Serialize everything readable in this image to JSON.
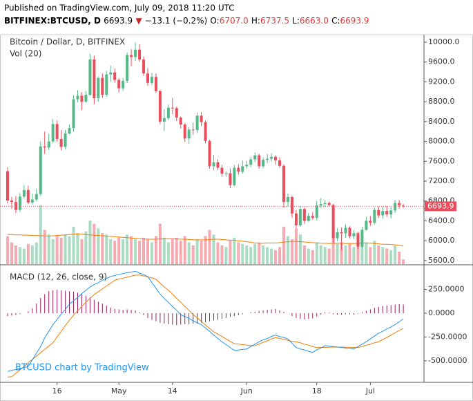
{
  "header": {
    "published": "Published on TradingView.com, July 09, 2018 11:20 UTC",
    "symbol": "BITFINEX:BTCUSD, D",
    "last": "6693.9",
    "arrow": "▼",
    "change": "−13.1 (−0.2%)",
    "o_label": "O:",
    "o": "6707.0",
    "h_label": "H:",
    "h": "6737.5",
    "l_label": "L:",
    "l": "6663.0",
    "c_label": "C:",
    "c": "6693.9"
  },
  "chart_data": {
    "type": "candlestick",
    "title": "Bitcoin / Dollar, D, BITFINEX",
    "watermark": "BTCUSD chart by TradingView",
    "up_color": "#53b987",
    "down_color": "#eb4d5c",
    "vol_up_color": "#a9dcc3",
    "vol_down_color": "#f5a9b0",
    "categories": [
      null,
      null,
      null,
      null,
      null,
      null,
      null,
      null,
      null,
      null,
      null,
      null,
      "16",
      null,
      null,
      null,
      null,
      null,
      null,
      null,
      null,
      null,
      null,
      null,
      null,
      null,
      null,
      "May",
      null,
      null,
      null,
      null,
      null,
      null,
      null,
      null,
      null,
      null,
      null,
      null,
      "14",
      null,
      null,
      null,
      null,
      null,
      null,
      null,
      null,
      null,
      null,
      null,
      null,
      null,
      null,
      null,
      null,
      null,
      "Jun",
      null,
      null,
      null,
      null,
      null,
      null,
      null,
      null,
      null,
      null,
      null,
      null,
      null,
      null,
      null,
      null,
      "18",
      null,
      null,
      null,
      null,
      null,
      null,
      null,
      null,
      null,
      null,
      null,
      null,
      "Jul",
      null,
      null,
      null,
      null,
      null,
      null,
      null,
      null
    ],
    "open": [
      7400,
      6810,
      6780,
      6620,
      6890,
      7020,
      6770,
      6830,
      6940,
      7900,
      7880,
      8000,
      8350,
      8050,
      7890,
      8160,
      8270,
      8850,
      8920,
      8800,
      8940,
      9650,
      8870,
      9280,
      8940,
      9350,
      9390,
      9240,
      9070,
      9220,
      9740,
      9700,
      9850,
      9650,
      9370,
      9180,
      9300,
      9010,
      8400,
      8470,
      8680,
      8670,
      8480,
      8340,
      8060,
      8240,
      8230,
      8520,
      8390,
      8010,
      7500,
      7580,
      7470,
      7350,
      7360,
      7120,
      7470,
      7390,
      7500,
      7530,
      7640,
      7720,
      7500,
      7630,
      7650,
      7690,
      7620,
      7510,
      6780,
      6880,
      6550,
      6310,
      6640,
      6400,
      6500,
      6460,
      6710,
      6740,
      6760,
      6720,
      6050,
      6170,
      6150,
      6260,
      6090,
      6150,
      5880,
      6220,
      6400,
      6360,
      6620,
      6510,
      6600,
      6530,
      6610,
      6760,
      6707
    ],
    "high": [
      7480,
      6880,
      6900,
      6960,
      7120,
      7110,
      6950,
      7050,
      8000,
      8200,
      8150,
      8450,
      8430,
      8230,
      8230,
      8340,
      8930,
      9030,
      8990,
      9020,
      9760,
      9730,
      9310,
      9370,
      9420,
      9530,
      9470,
      9270,
      9280,
      9790,
      9860,
      9990,
      9960,
      9710,
      9480,
      9380,
      9370,
      9040,
      8650,
      8740,
      8880,
      8700,
      8500,
      8370,
      8290,
      8380,
      8580,
      8590,
      8420,
      8030,
      7730,
      7640,
      7530,
      7400,
      7460,
      7530,
      7540,
      7620,
      7610,
      7690,
      7780,
      7750,
      7680,
      7750,
      7760,
      7720,
      7680,
      7540,
      6950,
      6910,
      6620,
      6700,
      6670,
      6560,
      6580,
      6800,
      6860,
      6820,
      6790,
      6740,
      6250,
      6270,
      6330,
      6290,
      6210,
      6180,
      6280,
      6480,
      6500,
      6660,
      6690,
      6680,
      6700,
      6680,
      6820,
      6820,
      6737.5
    ],
    "low": [
      6750,
      6640,
      6560,
      6580,
      6850,
      6740,
      6730,
      6790,
      6900,
      7750,
      7830,
      7970,
      7990,
      7820,
      7840,
      8140,
      8200,
      8790,
      8630,
      8780,
      8920,
      8750,
      8800,
      8880,
      8900,
      9200,
      9180,
      8990,
      9020,
      9180,
      9510,
      9620,
      9600,
      9320,
      9120,
      9130,
      8980,
      8350,
      8210,
      8430,
      8550,
      8410,
      8260,
      7990,
      7950,
      8130,
      8170,
      8310,
      7960,
      7450,
      7420,
      7420,
      7290,
      7290,
      7060,
      7090,
      7330,
      7350,
      7450,
      7480,
      7580,
      7450,
      7460,
      7560,
      7600,
      7530,
      7470,
      6660,
      6690,
      6460,
      6250,
      6280,
      6340,
      6380,
      6420,
      6410,
      6660,
      6680,
      6700,
      5960,
      5990,
      5800,
      6060,
      6050,
      6030,
      5830,
      5850,
      6200,
      6300,
      6330,
      6460,
      6440,
      6480,
      6450,
      6560,
      6650,
      6663
    ],
    "close": [
      6810,
      6780,
      6620,
      6890,
      7020,
      6770,
      6830,
      6940,
      7900,
      7880,
      8000,
      8350,
      8050,
      7890,
      8160,
      8270,
      8850,
      8920,
      8800,
      8940,
      9650,
      8870,
      9280,
      8940,
      9350,
      9390,
      9240,
      9070,
      9220,
      9740,
      9700,
      9850,
      9650,
      9370,
      9180,
      9300,
      9010,
      8400,
      8470,
      8680,
      8670,
      8480,
      8340,
      8060,
      8240,
      8230,
      8520,
      8390,
      8010,
      7500,
      7580,
      7470,
      7350,
      7360,
      7120,
      7470,
      7390,
      7500,
      7530,
      7640,
      7720,
      7500,
      7630,
      7650,
      7690,
      7620,
      7510,
      6780,
      6880,
      6550,
      6310,
      6640,
      6400,
      6500,
      6460,
      6710,
      6740,
      6760,
      6720,
      6050,
      6170,
      6150,
      6260,
      6090,
      6150,
      5880,
      6220,
      6400,
      6360,
      6620,
      6510,
      6600,
      6530,
      6610,
      6760,
      6710,
      6693.9
    ],
    "ylim": [
      5515,
      10153
    ],
    "yticks": [
      {
        "value": 10000,
        "label": "10000.0"
      },
      {
        "value": 9600,
        "label": "9600.0"
      },
      {
        "value": 9200,
        "label": "9200.0"
      },
      {
        "value": 8800,
        "label": "8800.0"
      },
      {
        "value": 8400,
        "label": "8400.0"
      },
      {
        "value": 8000,
        "label": "8000.0"
      },
      {
        "value": 7600,
        "label": "7600.0"
      },
      {
        "value": 7200,
        "label": "7200.0"
      },
      {
        "value": 6800,
        "label": "6800.0"
      },
      {
        "value": 6400,
        "label": "6400.0"
      },
      {
        "value": 6000,
        "label": "6000.0"
      },
      {
        "value": 5600,
        "label": "5600.0"
      }
    ],
    "volume": {
      "label": "Vol (20)",
      "ma_color": "#f57c00",
      "values": [
        90,
        70,
        60,
        55,
        50,
        65,
        60,
        70,
        190,
        110,
        95,
        80,
        90,
        85,
        95,
        90,
        120,
        100,
        80,
        105,
        140,
        130,
        115,
        100,
        95,
        80,
        75,
        85,
        80,
        95,
        90,
        80,
        75,
        85,
        80,
        70,
        90,
        130,
        85,
        70,
        80,
        85,
        75,
        90,
        70,
        60,
        80,
        75,
        90,
        110,
        95,
        70,
        60,
        55,
        75,
        85,
        70,
        65,
        60,
        55,
        65,
        70,
        60,
        55,
        50,
        45,
        55,
        120,
        90,
        80,
        115,
        95,
        60,
        50,
        45,
        70,
        60,
        55,
        50,
        120,
        65,
        70,
        60,
        65,
        55,
        100,
        80,
        70,
        55,
        75,
        60,
        55,
        50,
        45,
        60,
        40,
        15
      ],
      "ma": [
        95,
        95,
        94,
        94,
        93,
        93,
        92,
        92,
        91,
        91,
        90,
        91,
        92,
        93,
        94,
        95,
        96,
        96,
        96,
        95,
        94,
        93,
        92,
        91,
        90,
        89,
        88,
        87,
        86,
        85,
        84,
        83,
        82,
        81,
        80,
        80,
        80,
        81,
        82,
        82,
        82,
        81,
        80,
        80,
        79,
        78,
        78,
        78,
        78,
        79,
        80,
        80,
        79,
        78,
        77,
        76,
        75,
        74,
        72,
        70,
        68,
        67,
        67,
        68,
        68,
        68,
        69,
        71,
        72,
        73,
        73,
        72,
        71,
        70,
        69,
        68,
        67,
        67,
        66,
        67,
        67,
        67,
        66,
        66,
        66,
        67,
        68,
        68,
        67,
        66,
        65,
        64,
        64,
        63,
        62,
        60,
        58
      ]
    },
    "macd": {
      "label": "MACD (12, 26, close, 9)",
      "macd_color": "#2196f3",
      "signal_color": "#f57c00",
      "hist_color": "#9c1a5a",
      "ylim": [
        -725,
        507
      ],
      "yticks": [
        {
          "value": 250,
          "label": "250.0000"
        },
        {
          "value": 0,
          "label": "0.0000"
        },
        {
          "value": -250,
          "label": "-250.0000"
        },
        {
          "value": -500,
          "label": "-500.0000"
        }
      ],
      "macd": [
        -610,
        -600,
        -590,
        -580,
        -570,
        -560,
        -490,
        -420,
        -350,
        -260,
        -190,
        -120,
        -65,
        -10,
        40,
        95,
        130,
        165,
        205,
        240,
        275,
        300,
        320,
        345,
        365,
        385,
        395,
        405,
        415,
        425,
        430,
        440,
        420,
        405,
        385,
        320,
        260,
        200,
        155,
        115,
        70,
        30,
        -15,
        -35,
        -55,
        -80,
        -100,
        -120,
        -155,
        -190,
        -230,
        -265,
        -300,
        -330,
        -360,
        -390,
        -385,
        -380,
        -375,
        -350,
        -325,
        -300,
        -280,
        -265,
        -245,
        -230,
        -245,
        -255,
        -270,
        -315,
        -360,
        -375,
        -385,
        -400,
        -410,
        -385,
        -365,
        -340,
        -345,
        -350,
        -355,
        -360,
        -365,
        -370,
        -375,
        -350,
        -325,
        -300,
        -270,
        -240,
        -210,
        -190,
        -165,
        -145,
        -120,
        -90,
        -60
      ],
      "signal": [
        -670,
        -666,
        -630,
        -595,
        -560,
        -520,
        -485,
        -450,
        -415,
        -380,
        -345,
        -310,
        -250,
        -190,
        -130,
        -75,
        -20,
        25,
        70,
        115,
        155,
        195,
        225,
        255,
        285,
        315,
        345,
        357,
        368,
        378,
        388,
        398,
        400,
        390,
        380,
        370,
        355,
        315,
        275,
        240,
        200,
        155,
        115,
        70,
        30,
        -15,
        -50,
        -85,
        -125,
        -160,
        -195,
        -220,
        -245,
        -270,
        -295,
        -320,
        -325,
        -330,
        -335,
        -340,
        -340,
        -325,
        -305,
        -290,
        -270,
        -255,
        -265,
        -275,
        -285,
        -295,
        -300,
        -310,
        -325,
        -335,
        -350,
        -360,
        -360,
        -358,
        -357,
        -356,
        -355,
        -356,
        -357,
        -358,
        -359,
        -360,
        -350,
        -335,
        -325,
        -310,
        -300,
        -275,
        -255,
        -230,
        -205,
        -180,
        -160
      ],
      "histogram": [
        -30,
        -25,
        -20,
        -10,
        0,
        20,
        50,
        100,
        160,
        200,
        230,
        240,
        245,
        240,
        235,
        230,
        225,
        215,
        200,
        185,
        165,
        140,
        120,
        100,
        80,
        60,
        45,
        40,
        35,
        40,
        35,
        30,
        10,
        -20,
        -50,
        -70,
        -85,
        -100,
        -110,
        -115,
        -120,
        -125,
        -120,
        -115,
        -115,
        -110,
        -110,
        -100,
        -95,
        -85,
        -75,
        -70,
        -60,
        -50,
        -40,
        -30,
        -20,
        -10,
        0,
        10,
        15,
        25,
        30,
        35,
        40,
        45,
        30,
        15,
        0,
        -30,
        -50,
        -60,
        -65,
        -60,
        -55,
        -35,
        -15,
        10,
        5,
        -10,
        -15,
        -15,
        -10,
        -10,
        -15,
        -5,
        10,
        25,
        40,
        55,
        65,
        75,
        80,
        85,
        90,
        95,
        90
      ]
    }
  }
}
